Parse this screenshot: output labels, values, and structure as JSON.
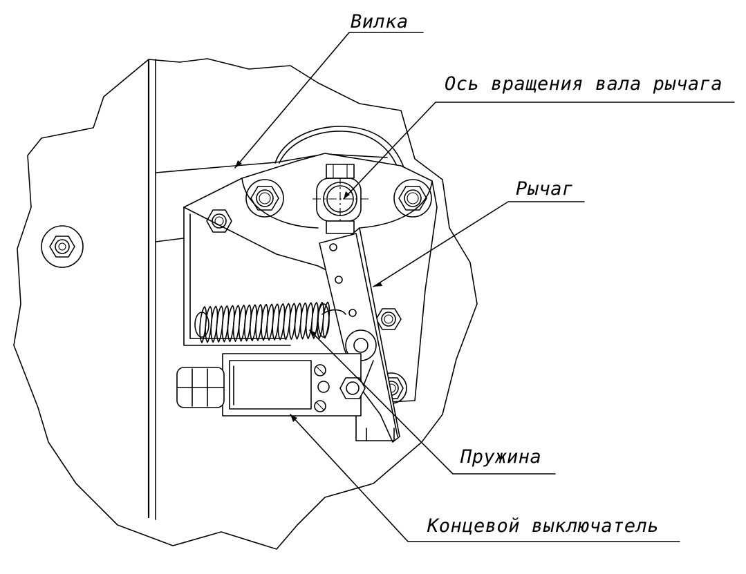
{
  "callouts": {
    "fork": "Вилка",
    "axis": "Ось вращения вала рычага",
    "lever": "Рычаг",
    "spring": "Пружина",
    "limit_switch": "Концевой выключатель"
  }
}
